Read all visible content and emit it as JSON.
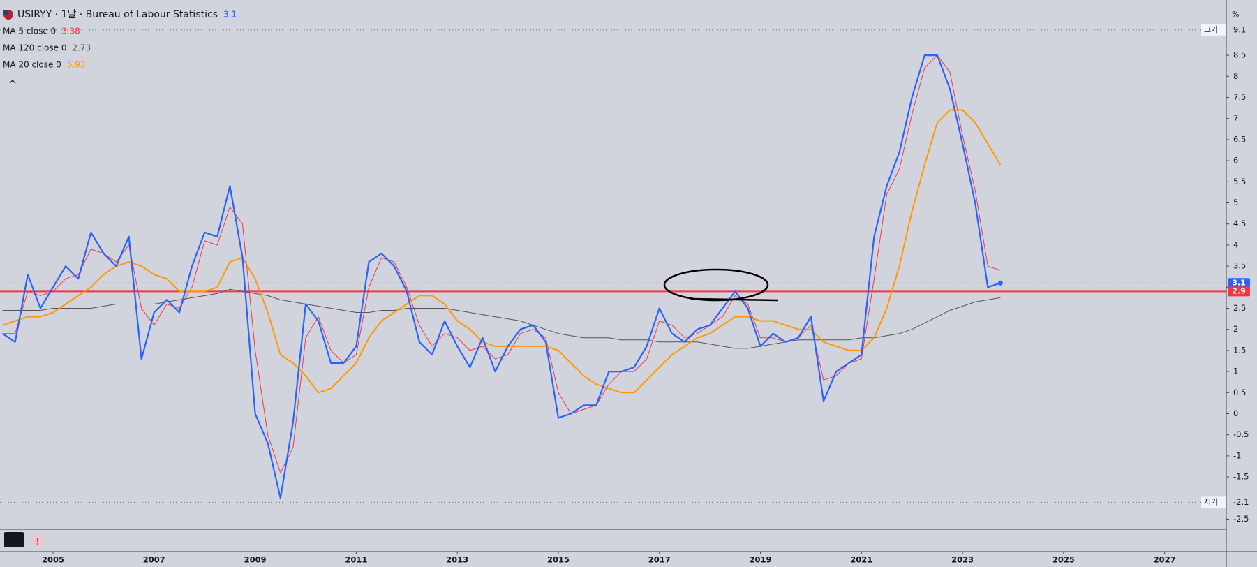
{
  "chart_data": {
    "type": "line",
    "title": "USIRYY · 1달 · Bureau of Labour Statistics",
    "unit": "%",
    "x": [
      2004,
      2004.25,
      2004.5,
      2004.75,
      2005,
      2005.25,
      2005.5,
      2005.75,
      2006,
      2006.25,
      2006.5,
      2006.75,
      2007,
      2007.25,
      2007.5,
      2007.75,
      2008,
      2008.25,
      2008.5,
      2008.75,
      2009,
      2009.25,
      2009.5,
      2009.75,
      2010,
      2010.25,
      2010.5,
      2010.75,
      2011,
      2011.25,
      2011.5,
      2011.75,
      2012,
      2012.25,
      2012.5,
      2012.75,
      2013,
      2013.25,
      2013.5,
      2013.75,
      2014,
      2014.25,
      2014.5,
      2014.75,
      2015,
      2015.25,
      2015.5,
      2015.75,
      2016,
      2016.25,
      2016.5,
      2016.75,
      2017,
      2017.25,
      2017.5,
      2017.75,
      2018,
      2018.25,
      2018.5,
      2018.75,
      2019,
      2019.25,
      2019.5,
      2019.75,
      2020,
      2020.25,
      2020.5,
      2020.75,
      2021,
      2021.25,
      2021.5,
      2021.75,
      2022,
      2022.25,
      2022.5,
      2022.75,
      2023,
      2023.25,
      2023.5,
      2023.75
    ],
    "series": [
      {
        "name": "USIRYY",
        "color": "#2962ff",
        "width": 2.2,
        "values": [
          1.9,
          1.7,
          3.3,
          2.5,
          3.0,
          3.5,
          3.2,
          4.3,
          3.8,
          3.5,
          4.2,
          1.3,
          2.4,
          2.7,
          2.4,
          3.5,
          4.3,
          4.2,
          5.4,
          3.7,
          0.0,
          -0.7,
          -2.0,
          -0.2,
          2.6,
          2.2,
          1.2,
          1.2,
          1.6,
          3.6,
          3.8,
          3.5,
          2.9,
          1.7,
          1.4,
          2.2,
          1.6,
          1.1,
          1.8,
          1.0,
          1.6,
          2.0,
          2.1,
          1.7,
          -0.1,
          0.0,
          0.2,
          0.2,
          1.0,
          1.0,
          1.1,
          1.6,
          2.5,
          1.9,
          1.7,
          2.0,
          2.1,
          2.5,
          2.9,
          2.5,
          1.6,
          1.9,
          1.7,
          1.8,
          2.3,
          0.3,
          1.0,
          1.2,
          1.4,
          4.2,
          5.4,
          6.2,
          7.5,
          8.5,
          8.5,
          7.7,
          6.4,
          5.0,
          3.0,
          3.1
        ]
      },
      {
        "name": "MA 5 close 0",
        "color": "#f23645",
        "width": 1,
        "legend_value": 3.38,
        "values": [
          1.9,
          1.9,
          2.9,
          2.8,
          2.9,
          3.2,
          3.3,
          3.9,
          3.8,
          3.6,
          4.0,
          2.5,
          2.1,
          2.6,
          2.5,
          3.0,
          4.1,
          4.0,
          4.9,
          4.5,
          1.5,
          -0.5,
          -1.4,
          -0.8,
          1.8,
          2.3,
          1.5,
          1.2,
          1.4,
          3.0,
          3.7,
          3.6,
          3.0,
          2.1,
          1.6,
          1.9,
          1.8,
          1.5,
          1.6,
          1.3,
          1.4,
          1.9,
          2.0,
          1.8,
          0.5,
          0.0,
          0.1,
          0.2,
          0.7,
          1.0,
          1.0,
          1.3,
          2.2,
          2.1,
          1.8,
          1.9,
          2.1,
          2.3,
          2.8,
          2.6,
          1.8,
          1.8,
          1.7,
          1.8,
          2.1,
          0.8,
          0.9,
          1.2,
          1.3,
          3.2,
          5.2,
          5.8,
          7.1,
          8.2,
          8.5,
          8.1,
          6.6,
          5.3,
          3.5,
          3.4
        ]
      },
      {
        "name": "MA 120 close 0",
        "color": "#555555",
        "width": 1,
        "legend_value": 2.73,
        "values": [
          2.45,
          2.45,
          2.45,
          2.45,
          2.5,
          2.5,
          2.5,
          2.5,
          2.55,
          2.6,
          2.6,
          2.6,
          2.6,
          2.65,
          2.7,
          2.75,
          2.8,
          2.85,
          2.95,
          2.9,
          2.85,
          2.8,
          2.7,
          2.65,
          2.6,
          2.55,
          2.5,
          2.45,
          2.4,
          2.4,
          2.45,
          2.45,
          2.5,
          2.5,
          2.5,
          2.5,
          2.45,
          2.4,
          2.35,
          2.3,
          2.25,
          2.2,
          2.1,
          2.0,
          1.9,
          1.85,
          1.8,
          1.8,
          1.8,
          1.75,
          1.75,
          1.75,
          1.7,
          1.7,
          1.7,
          1.7,
          1.65,
          1.6,
          1.55,
          1.55,
          1.6,
          1.65,
          1.7,
          1.75,
          1.75,
          1.75,
          1.75,
          1.75,
          1.8,
          1.8,
          1.85,
          1.9,
          2.0,
          2.15,
          2.3,
          2.45,
          2.55,
          2.65,
          2.7,
          2.75
        ]
      },
      {
        "name": "MA 20 close 0",
        "color": "#ff9800",
        "width": 2,
        "legend_value": 5.93,
        "values": [
          2.1,
          2.2,
          2.3,
          2.3,
          2.4,
          2.6,
          2.8,
          3.0,
          3.3,
          3.5,
          3.6,
          3.5,
          3.3,
          3.2,
          2.9,
          2.9,
          2.9,
          3.0,
          3.6,
          3.7,
          3.2,
          2.4,
          1.4,
          1.2,
          0.9,
          0.5,
          0.6,
          0.9,
          1.2,
          1.8,
          2.2,
          2.4,
          2.6,
          2.8,
          2.8,
          2.6,
          2.2,
          2.0,
          1.7,
          1.6,
          1.6,
          1.6,
          1.6,
          1.6,
          1.5,
          1.2,
          0.9,
          0.7,
          0.6,
          0.5,
          0.5,
          0.8,
          1.1,
          1.4,
          1.6,
          1.8,
          1.9,
          2.1,
          2.3,
          2.3,
          2.2,
          2.2,
          2.1,
          2.0,
          2.0,
          1.7,
          1.6,
          1.5,
          1.5,
          1.8,
          2.5,
          3.5,
          4.8,
          5.9,
          6.9,
          7.2,
          7.2,
          6.9,
          6.4,
          5.9
        ]
      }
    ],
    "hline": {
      "value": 2.9,
      "color": "#f23645"
    },
    "high": {
      "label": "고가",
      "value": 9.1
    },
    "low": {
      "label": "저가",
      "value": -2.1
    },
    "xlim": [
      2003.95,
      2028.22
    ],
    "xticks": [
      2005,
      2007,
      2009,
      2011,
      2013,
      2015,
      2017,
      2019,
      2021,
      2023,
      2025,
      2027
    ],
    "ylim": [
      -2.74,
      9.71
    ],
    "yticks": [
      8.5,
      8,
      7.5,
      7,
      6.5,
      6,
      5.5,
      5,
      4.5,
      4,
      3.5,
      3,
      2.5,
      2,
      1.5,
      1,
      0.5,
      0,
      -0.5,
      -1,
      -1.5,
      -2.5
    ]
  }
}
